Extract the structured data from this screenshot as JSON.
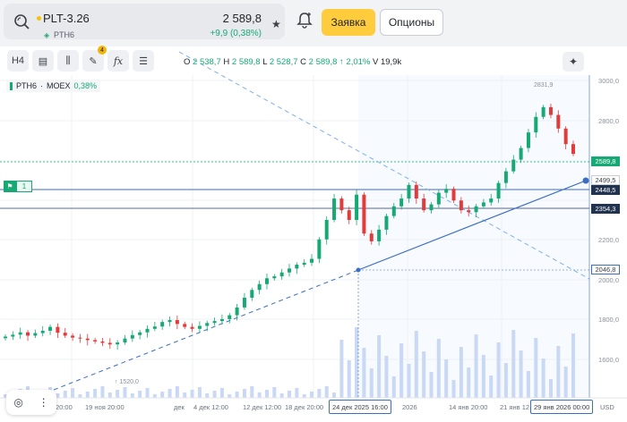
{
  "ticker": {
    "name": "PLT-3.26",
    "subname": "PTH6",
    "price": "2 589,8",
    "change": "+9,9 (0,38%)"
  },
  "actions": {
    "order_label": "Заявка",
    "options_label": "Опционы"
  },
  "toolbar": {
    "timeframe": "H4",
    "drawing_badge": "4",
    "fx_label": "fx"
  },
  "ohlc": {
    "o_label": "O",
    "o": "2 538,7",
    "h_label": "H",
    "h": "2 589,8",
    "l_label": "L",
    "l": "2 528,7",
    "c_label": "C",
    "c": "2 589,8",
    "chg": "↑ 2,01%",
    "v_label": "V",
    "v": "19,9k"
  },
  "legend": {
    "symbol": "PTH6",
    "exchange": "MOEX",
    "pct": "0,38%"
  },
  "alert": {
    "count": "1"
  },
  "price_axis": {
    "labels": [
      "3000,0",
      "2800,0",
      "2200,0",
      "2000,0",
      "1800,0",
      "1600,0"
    ],
    "current": "2589,8",
    "marker1": "2499,5",
    "marker2": "2448,5",
    "marker3": "2354,3",
    "marker4": "2046,8"
  },
  "annotations": {
    "high": "2831,9",
    "low": "1520,0"
  },
  "time_axis": {
    "labels": [
      "20:00",
      "19 ноя 20:00",
      "дек",
      "4 дек 12:00",
      "12 дек 12:00",
      "18 дек 20:00",
      "2026",
      "14 янв 20:00",
      "21 янв 12"
    ],
    "box_left": "24 дек 2025 16:00",
    "box_right": "29 янв 2026 00:00",
    "currency": "USD"
  },
  "chart_data": {
    "type": "candlestick",
    "y_unit": "USD",
    "ylim": [
      1450,
      3050
    ],
    "series": [
      {
        "name": "PTH6",
        "values": [
          1650,
          1660,
          1672,
          1655,
          1668,
          1680,
          1700,
          1670,
          1655,
          1645,
          1640,
          1632,
          1625,
          1618,
          1610,
          1620,
          1640,
          1658,
          1672,
          1690,
          1702,
          1725,
          1735,
          1715,
          1700,
          1690,
          1705,
          1720,
          1730,
          1740,
          1760,
          1800,
          1850,
          1890,
          1920,
          1950,
          1960,
          1980,
          2000,
          2020,
          2030,
          2050,
          2150,
          2250,
          2360,
          2300,
          2250,
          2380,
          2180,
          2140,
          2200,
          2270,
          2320,
          2360,
          2430,
          2360,
          2300,
          2330,
          2390,
          2410,
          2350,
          2300,
          2290,
          2320,
          2340,
          2360,
          2440,
          2500,
          2560,
          2620,
          2700,
          2780,
          2830,
          2790,
          2720,
          2640,
          2589.8
        ]
      }
    ]
  }
}
